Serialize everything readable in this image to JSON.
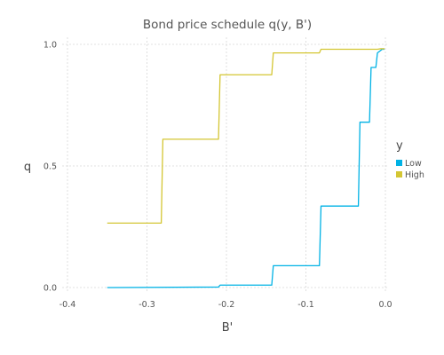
{
  "chart_data": {
    "type": "line",
    "title": "Bond price schedule q(y, B')",
    "xlabel": "B'",
    "ylabel": "q",
    "xlim": [
      -0.4,
      0.0
    ],
    "ylim": [
      0.0,
      1.0
    ],
    "xticks": [
      -0.4,
      -0.3,
      -0.2,
      -0.1,
      0.0
    ],
    "xtick_labels": [
      "-0.4",
      "-0.3",
      "-0.2",
      "-0.1",
      "0.0"
    ],
    "yticks": [
      0.0,
      0.5,
      1.0
    ],
    "ytick_labels": [
      "0.0",
      "0.5",
      "1.0"
    ],
    "grid": true,
    "legend": {
      "title": "y",
      "position": "right"
    },
    "series": [
      {
        "name": "Low",
        "color": "#00b2e5",
        "x": [
          -0.35,
          -0.21,
          -0.208,
          -0.143,
          -0.141,
          -0.083,
          -0.081,
          -0.034,
          -0.032,
          -0.02,
          -0.018,
          -0.012,
          -0.01,
          -0.006,
          -0.004,
          -0.001
        ],
        "y": [
          0.0,
          0.002,
          0.01,
          0.01,
          0.09,
          0.09,
          0.335,
          0.335,
          0.68,
          0.68,
          0.905,
          0.905,
          0.965,
          0.975,
          0.98,
          0.98
        ]
      },
      {
        "name": "High",
        "color": "#d4c633",
        "x": [
          -0.35,
          -0.282,
          -0.28,
          -0.21,
          -0.208,
          -0.143,
          -0.141,
          -0.083,
          -0.081,
          -0.01,
          -0.006,
          -0.001
        ],
        "y": [
          0.265,
          0.265,
          0.61,
          0.61,
          0.875,
          0.875,
          0.965,
          0.965,
          0.98,
          0.98,
          0.982,
          0.982
        ]
      }
    ]
  }
}
